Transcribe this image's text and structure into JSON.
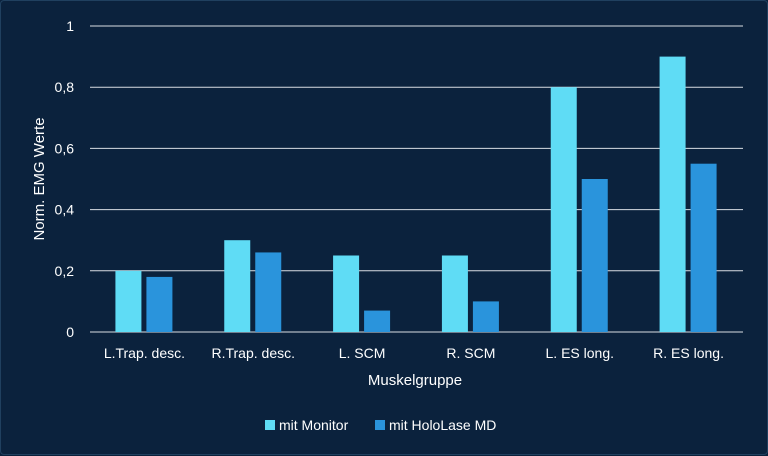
{
  "chart_data": {
    "type": "bar",
    "title": "",
    "xlabel": "Muskelgruppe",
    "ylabel": "Norm. EMG Werte",
    "categories": [
      "L.Trap. desc.",
      "R.Trap. desc.",
      "L. SCM",
      "R. SCM",
      "L. ES long.",
      "R. ES long."
    ],
    "series": [
      {
        "name": "mit Monitor",
        "color": "#5fdcf5",
        "values": [
          0.2,
          0.3,
          0.25,
          0.25,
          0.8,
          0.9
        ]
      },
      {
        "name": "mit HoloLase MD",
        "color": "#2a94dc",
        "values": [
          0.18,
          0.26,
          0.07,
          0.1,
          0.5,
          0.55
        ]
      }
    ],
    "ylim": [
      0,
      1
    ],
    "yticks": [
      0,
      0.2,
      0.4,
      0.6,
      0.8,
      1
    ],
    "ytick_labels": [
      "0",
      "0,2",
      "0,4",
      "0,6",
      "0,8",
      "1"
    ],
    "grid": true,
    "legend_position": "bottom-center",
    "colors": {
      "background": "#0b223d",
      "text": "#ffffff",
      "grid": "#d9dde3"
    }
  }
}
